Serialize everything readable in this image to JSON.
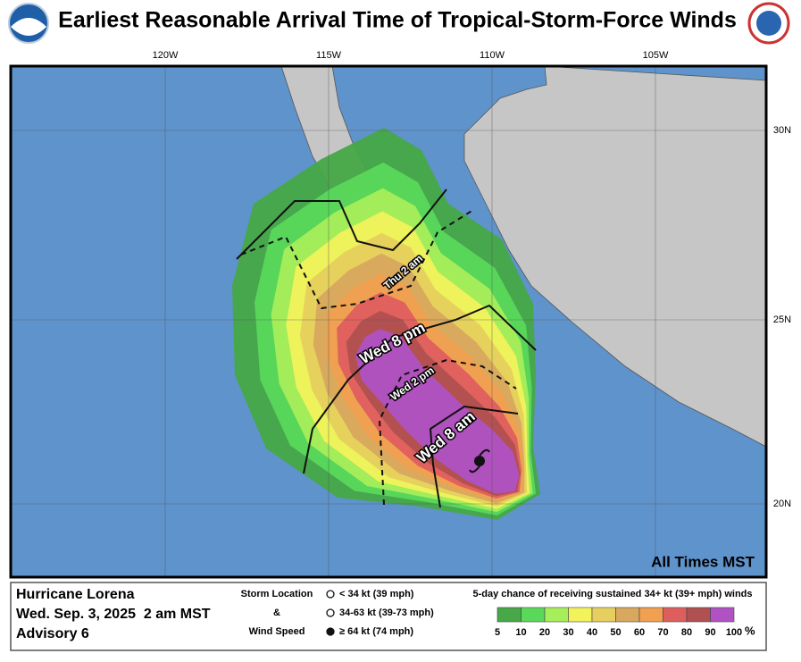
{
  "header": {
    "title": "Earliest Reasonable Arrival Time of Tropical-Storm-Force Winds"
  },
  "map": {
    "lon_labels": [
      "120W",
      "115W",
      "110W",
      "105W"
    ],
    "lat_labels": [
      "30N",
      "25N",
      "20N"
    ],
    "note": "All Times MST",
    "contour_labels": [
      "Wed 8 am",
      "Wed 2 pm",
      "Wed 8 pm",
      "Thu 2 am"
    ]
  },
  "info": {
    "storm": "Hurricane Lorena",
    "time": "Wed. Sep. 3, 2025  2 am MST",
    "advisory": "Advisory 6"
  },
  "storm_legend": {
    "title_lines": [
      "Storm Location",
      "&",
      "Wind Speed"
    ],
    "items": [
      "< 34 kt (39 mph)",
      "34-63 kt (39-73 mph)",
      "≥ 64 kt (74 mph)"
    ]
  },
  "probability_legend": {
    "title": "5-day chance of receiving sustained 34+ kt (39+ mph) winds",
    "colors": [
      "#46a846",
      "#5ad85a",
      "#a6ee5a",
      "#f2f25c",
      "#e6cf5e",
      "#d8a85e",
      "#f0a050",
      "#de5e5e",
      "#b05050",
      "#b052c4"
    ],
    "labels": [
      "5",
      "10",
      "20",
      "30",
      "40",
      "50",
      "60",
      "70",
      "80",
      "90",
      "100"
    ],
    "unit": "%"
  }
}
